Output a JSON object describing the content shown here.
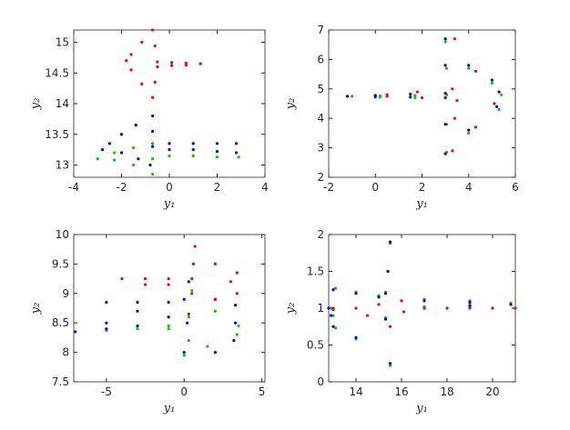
{
  "chart_data": [
    {
      "type": "scatter",
      "xlabel": "y₁",
      "ylabel": "y₂",
      "xlim": [
        -4,
        4
      ],
      "ylim": [
        12.8,
        15.2
      ],
      "xticks": [
        -4,
        -2,
        0,
        2,
        4
      ],
      "yticks": [
        13,
        13.5,
        14,
        14.5,
        15
      ],
      "series": [
        {
          "color": "#00cc00",
          "x": [
            -0.7,
            -0.7,
            -0.7,
            -1.5,
            -2.3,
            -3.0,
            -2.3,
            -1.5,
            0,
            1,
            2,
            2.9
          ],
          "y": [
            13.35,
            13.1,
            12.85,
            13.0,
            13.08,
            13.1,
            13.2,
            13.28,
            13.15,
            13.15,
            13.13,
            13.13
          ]
        },
        {
          "color": "#0000ff",
          "x": [
            -0.7,
            -0.7,
            -0.7,
            -0.8,
            -1.3,
            -2.0,
            -2.8,
            -2.5,
            -2.0,
            -1.4,
            0,
            1,
            2,
            2.8,
            0,
            1,
            2,
            2.8
          ],
          "y": [
            13.8,
            13.55,
            13.3,
            13.0,
            13.1,
            13.2,
            13.25,
            13.35,
            13.5,
            13.65,
            13.35,
            13.35,
            13.35,
            13.35,
            13.25,
            13.25,
            13.22,
            13.2
          ]
        },
        {
          "color": "#ff0000",
          "x": [
            1.3,
            0.7,
            0.1,
            -0.5,
            -0.6,
            -0.7,
            -1.15,
            -1.6,
            -1.8,
            -1.6,
            -1.15,
            -0.7,
            -0.6,
            -0.5,
            0.1,
            0.7
          ],
          "y": [
            14.65,
            14.66,
            14.67,
            14.68,
            14.94,
            15.2,
            15.0,
            14.8,
            14.7,
            14.55,
            14.32,
            14.1,
            14.35,
            14.6,
            14.62,
            14.63
          ]
        }
      ]
    },
    {
      "type": "scatter",
      "xlabel": "y₁",
      "ylabel": "y₂",
      "xlim": [
        -2,
        6
      ],
      "ylim": [
        2,
        7
      ],
      "xticks": [
        -2,
        0,
        2,
        4,
        6
      ],
      "yticks": [
        2,
        3,
        4,
        5,
        6,
        7
      ],
      "series": [
        {
          "color": "#00cc00",
          "x": [
            -1.0,
            0.2,
            1.7,
            3.05,
            3.05,
            3.0,
            4,
            5,
            5.4,
            5.3,
            4,
            3.05,
            3.05,
            1.7,
            0.2
          ],
          "y": [
            4.75,
            4.76,
            4.78,
            4.8,
            5.7,
            6.6,
            5.7,
            5.2,
            4.8,
            4.3,
            3.5,
            2.85,
            3.8,
            4.7,
            4.72
          ]
        },
        {
          "color": "#0000ff",
          "x": [
            -1.2,
            0,
            1.5,
            3,
            3.0,
            3,
            4,
            5,
            5.3,
            5.2,
            4,
            3,
            3,
            3,
            1.5,
            0
          ],
          "y": [
            4.75,
            4.78,
            4.82,
            4.85,
            5.8,
            6.7,
            5.8,
            5.3,
            4.9,
            4.4,
            3.6,
            2.8,
            3.8,
            4.7,
            4.72,
            4.73
          ]
        },
        {
          "color": "#ff0000",
          "x": [
            0.5,
            1.8,
            3.3,
            3.4,
            4.3,
            5.1,
            4.3,
            3.3,
            3.4,
            3.5,
            2,
            0.5
          ],
          "y": [
            4.8,
            4.9,
            5.0,
            6.7,
            5.6,
            4.5,
            3.7,
            2.9,
            4.0,
            4.6,
            4.7,
            4.75
          ]
        }
      ]
    },
    {
      "type": "scatter",
      "xlabel": "y₁",
      "ylabel": "y₂",
      "xlim": [
        -7.1,
        5.2
      ],
      "ylim": [
        7.5,
        10
      ],
      "xticks": [
        -5,
        0,
        5
      ],
      "yticks": [
        7.5,
        8,
        8.5,
        9,
        9.5,
        10
      ],
      "series": [
        {
          "color": "#00cc00",
          "x": [
            -7.0,
            -5,
            -3,
            -1,
            0.3,
            0,
            1.5,
            3.4,
            3.5,
            2,
            0.5,
            0.3,
            -1,
            -3
          ],
          "y": [
            8.35,
            8.37,
            8.4,
            8.4,
            8.2,
            7.95,
            8.1,
            8.3,
            8.45,
            8.7,
            9.05,
            8.6,
            8.45,
            8.4
          ]
        },
        {
          "color": "#0000ff",
          "x": [
            -7,
            -5,
            -3,
            -5,
            -3,
            -1,
            0,
            0.3,
            2,
            3.3,
            3.3,
            3.2,
            2,
            0,
            0.2,
            -1,
            -3,
            -5
          ],
          "y": [
            8.35,
            8.5,
            8.7,
            8.85,
            8.85,
            8.85,
            8.9,
            9.2,
            8.9,
            8.8,
            8.5,
            8.2,
            8.0,
            8.0,
            8.5,
            8.6,
            8.45,
            8.4
          ]
        },
        {
          "color": "#ff0000",
          "x": [
            -4,
            -2.5,
            -1,
            0.5,
            0.6,
            0.7,
            2,
            3.4,
            3.0,
            3.4,
            2,
            0.3,
            0.5,
            -1,
            -2.5
          ],
          "y": [
            9.25,
            9.25,
            9.25,
            9.25,
            9.5,
            9.8,
            9.5,
            9.35,
            9.2,
            9.0,
            8.9,
            8.65,
            9.0,
            9.15,
            9.15
          ]
        }
      ]
    },
    {
      "type": "scatter",
      "xlabel": "y₁",
      "ylabel": "y₂",
      "xlim": [
        12.8,
        21
      ],
      "ylim": [
        0,
        2
      ],
      "xticks": [
        14,
        16,
        18,
        20
      ],
      "yticks": [
        0,
        0.5,
        1,
        1.5,
        2
      ],
      "series": [
        {
          "color": "#00cc00",
          "x": [
            12.9,
            13.1,
            14,
            15,
            15.5,
            15.4,
            15.3,
            17,
            19,
            20.8,
            19,
            17,
            15.3,
            15.5,
            14,
            13.1,
            13.0
          ],
          "y": [
            1.0,
            1.27,
            1.22,
            1.17,
            1.88,
            1.5,
            1.22,
            1.12,
            1.1,
            1.07,
            1.05,
            1.02,
            0.87,
            0.22,
            0.58,
            0.73,
            0.9
          ]
        },
        {
          "color": "#0000ff",
          "x": [
            12.8,
            13,
            14,
            15,
            15.5,
            15.4,
            15.3,
            17,
            19,
            20.8,
            19,
            17,
            15.3,
            15.5,
            14,
            13,
            12.9
          ],
          "y": [
            1.0,
            1.25,
            1.2,
            1.15,
            1.9,
            1.5,
            1.2,
            1.1,
            1.08,
            1.05,
            1.03,
            1.0,
            0.85,
            0.25,
            0.6,
            0.75,
            0.9
          ]
        },
        {
          "color": "#ff0000",
          "x": [
            13,
            14,
            15,
            16,
            16.1,
            15.5,
            14.5,
            13,
            17,
            18,
            19,
            20,
            21
          ],
          "y": [
            1.0,
            1.0,
            1.05,
            1.1,
            0.95,
            0.75,
            0.9,
            0.98,
            1.0,
            1.0,
            1.0,
            1.0,
            1.0
          ]
        }
      ]
    }
  ]
}
